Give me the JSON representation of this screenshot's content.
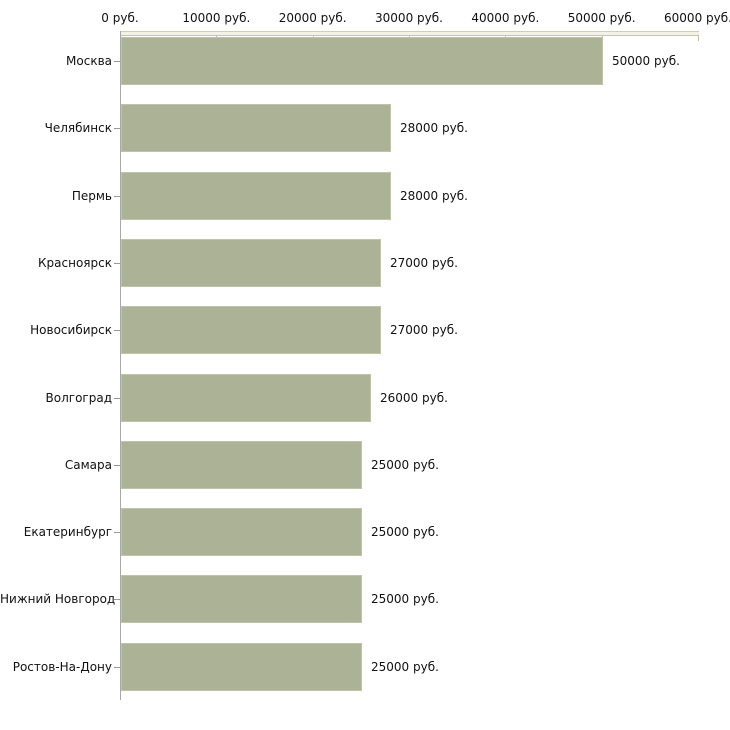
{
  "chart_data": {
    "type": "bar",
    "orientation": "horizontal",
    "title": "",
    "xlabel": "",
    "ylabel": "",
    "xlim": [
      0,
      60000
    ],
    "x_unit": "руб.",
    "grid": false,
    "legend": "none",
    "x_ticks": [
      0,
      10000,
      20000,
      30000,
      40000,
      50000,
      60000
    ],
    "x_tick_labels": [
      "0 руб.",
      "10000 руб.",
      "20000 руб.",
      "30000 руб.",
      "40000 руб.",
      "50000 руб.",
      "60000 руб."
    ],
    "categories": [
      "Москва",
      "Челябинск",
      "Пермь",
      "Красноярск",
      "Новосибирск",
      "Волгоград",
      "Самара",
      "Екатеринбург",
      "Нижний Новгород",
      "Ростов-На-Дону"
    ],
    "values": [
      50000,
      28000,
      28000,
      27000,
      27000,
      26000,
      25000,
      25000,
      25000,
      25000
    ],
    "value_labels": [
      "50000 руб.",
      "28000 руб.",
      "28000 руб.",
      "27000 руб.",
      "27000 руб.",
      "26000 руб.",
      "25000 руб.",
      "25000 руб.",
      "25000 руб.",
      "25000 руб."
    ],
    "colors": {
      "bar_fill": "#acb296",
      "bar_border": "#bfc4a8",
      "x_axis_band_fill": "#f2f2e6",
      "x_axis_band_border": "#cfcfb6",
      "x_tick_mark": "#c2c2a0",
      "y_axis_line": "#a8a8a8",
      "y_tick_mark": "#999999",
      "text": "#111111",
      "background": "#ffffff"
    }
  }
}
